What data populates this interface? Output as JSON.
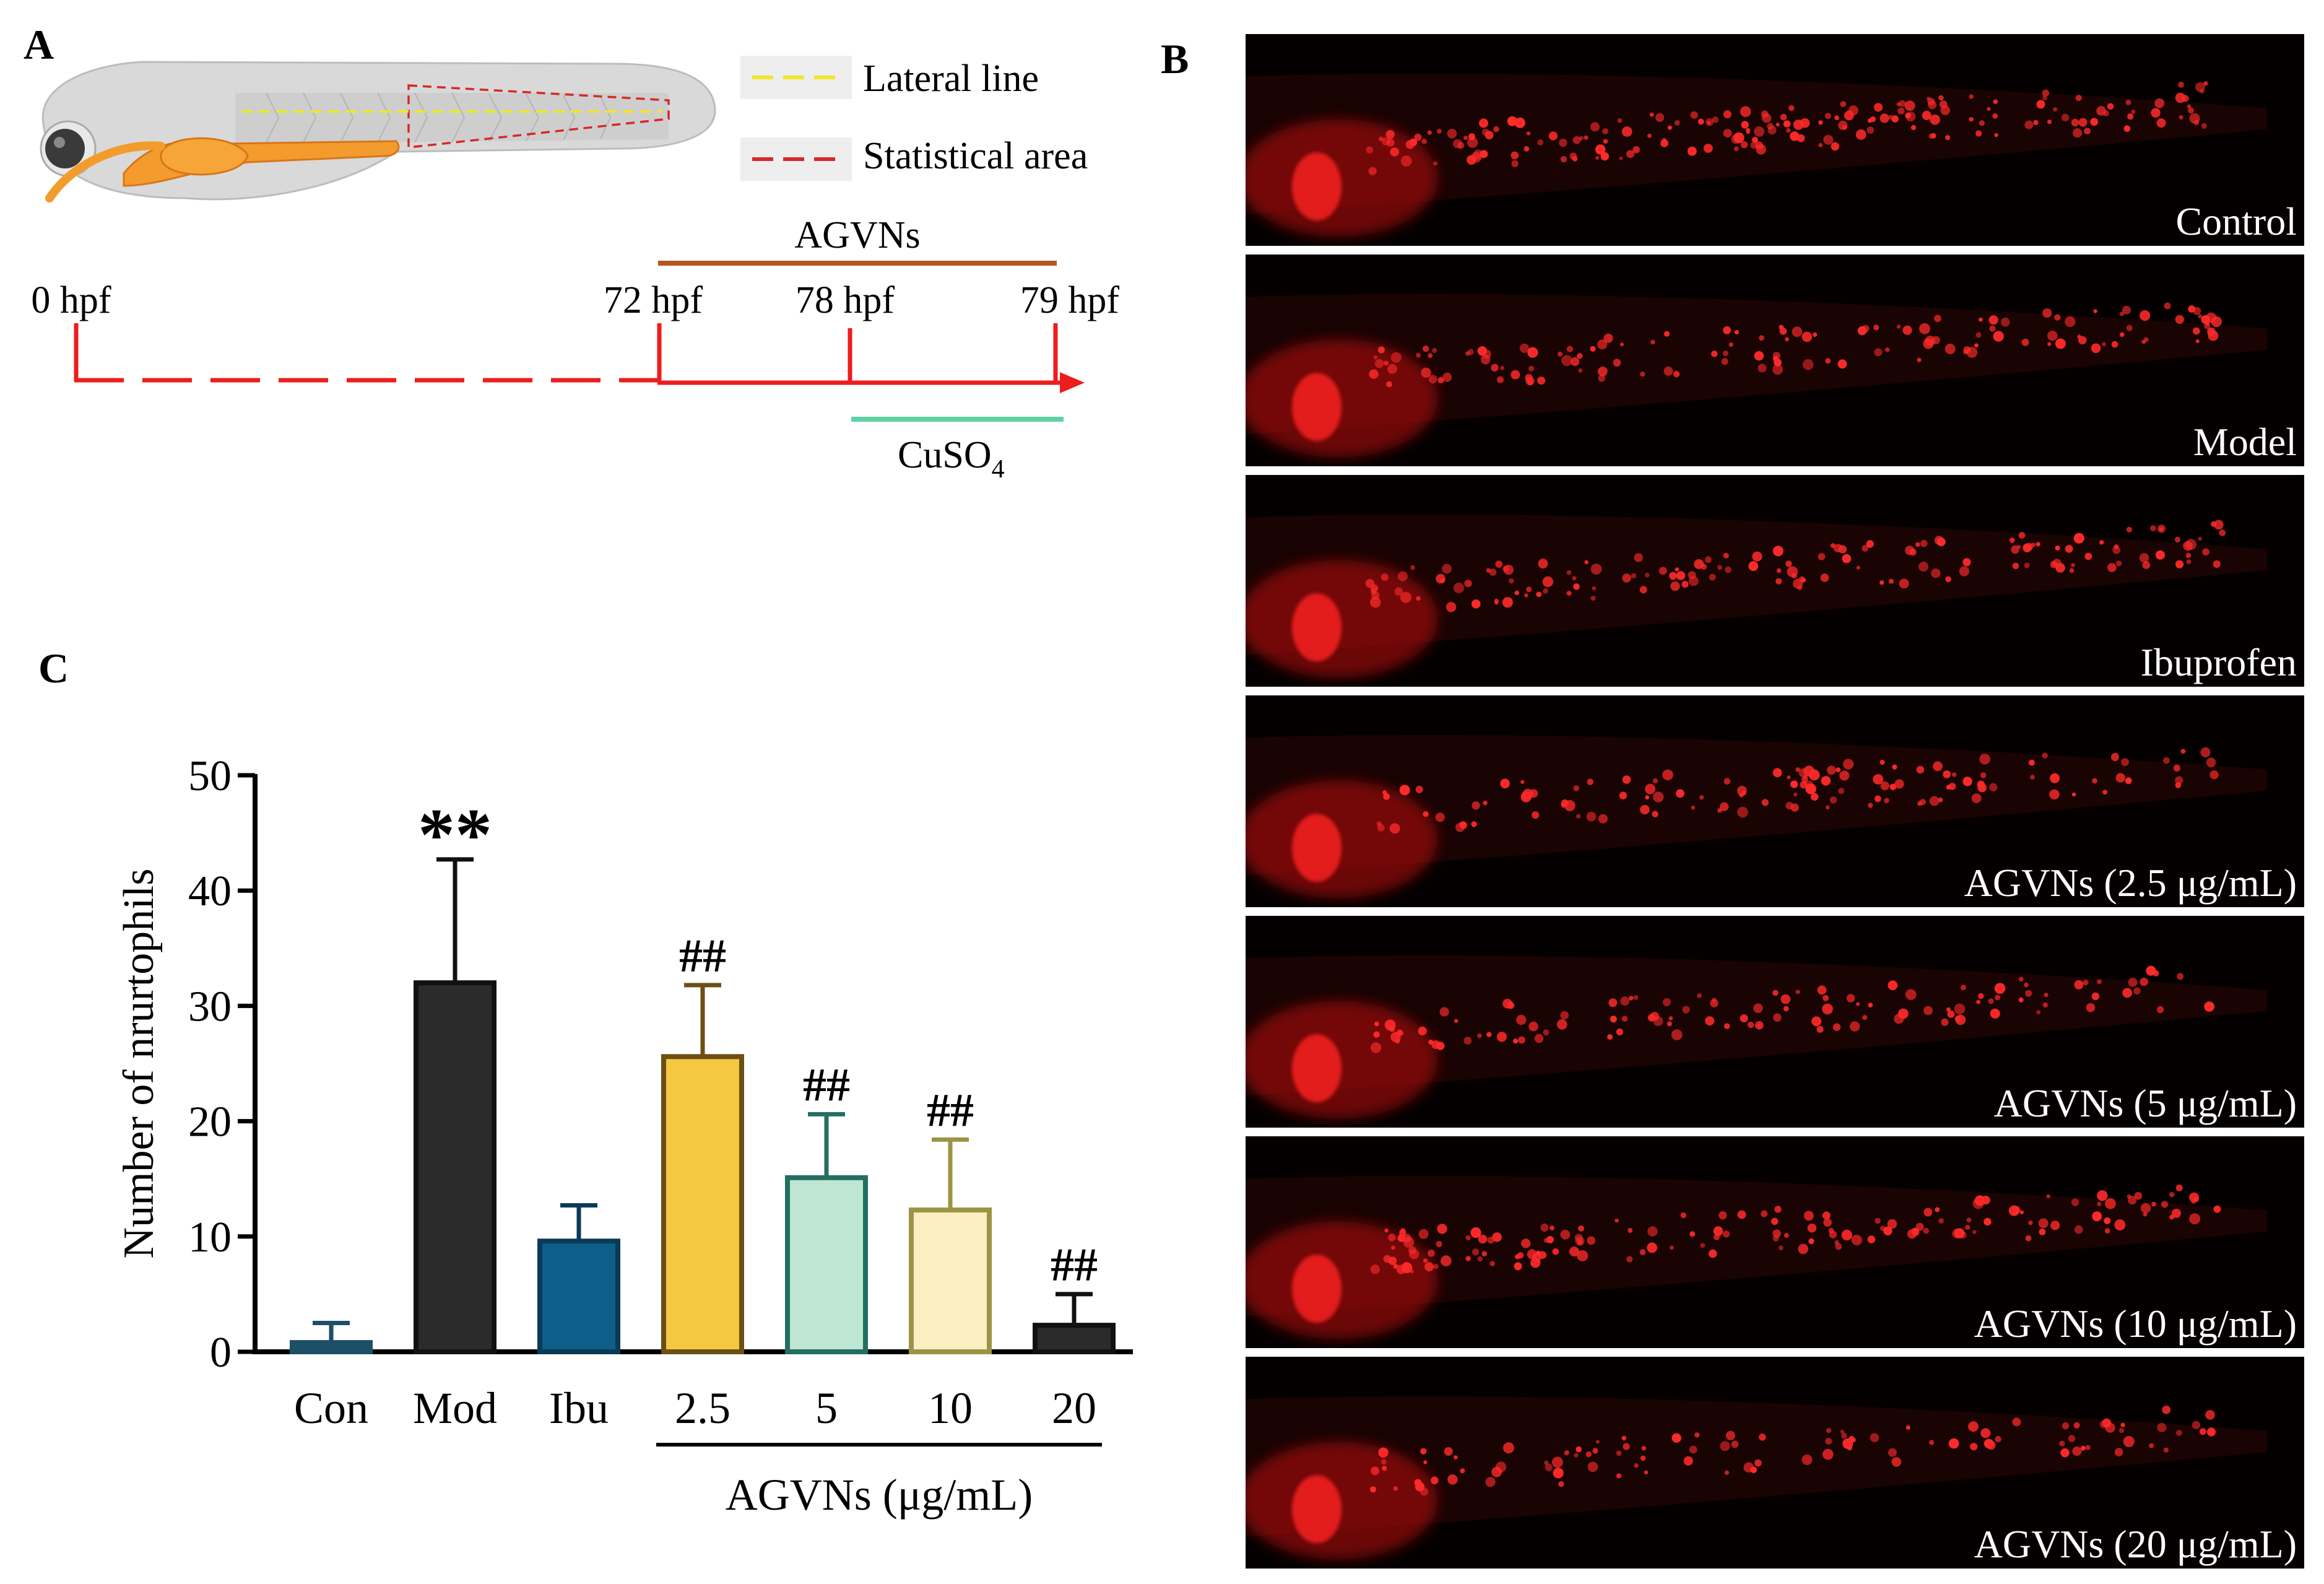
{
  "panel_a": {
    "letter": "A",
    "legend": [
      {
        "label": "Lateral line",
        "color": "#f2e52a"
      },
      {
        "label": "Statistical area",
        "color": "#d62828"
      }
    ],
    "timeline": {
      "ticks": [
        "0 hpf",
        "72 hpf",
        "78 hpf",
        "79 hpf"
      ],
      "agvns_label": "AGVNs",
      "cuso4_label": "CuSO",
      "cuso4_sub": "4",
      "colors": {
        "timeline": "#ee1c1c",
        "agvns_bar": "#b4561f",
        "cuso4_bar": "#5fd3a5"
      }
    }
  },
  "panel_b": {
    "letter": "B",
    "images": [
      {
        "label": "Control"
      },
      {
        "label": "Model"
      },
      {
        "label": "Ibuprofen"
      },
      {
        "label": "AGVNs (2.5 μg/mL)"
      },
      {
        "label": "AGVNs (5 μg/mL)"
      },
      {
        "label": "AGVNs (10 μg/mL)"
      },
      {
        "label": "AGVNs (20 μg/mL)"
      }
    ]
  },
  "panel_c": {
    "letter": "C",
    "group_label": "AGVNs (μg/mL)"
  },
  "chart_data": {
    "type": "bar",
    "categories": [
      "Con",
      "Mod",
      "Ibu",
      "2.5",
      "5",
      "10",
      "20"
    ],
    "values": [
      0.8,
      32,
      9.6,
      25.6,
      15.1,
      12.3,
      2.3
    ],
    "errors": [
      1.7,
      10.7,
      3.1,
      6.2,
      5.5,
      6.1,
      2.7
    ],
    "annotations": [
      "",
      "**",
      "",
      "##",
      "##",
      "##",
      "##"
    ],
    "colors": [
      "#1d4f66",
      "#2b2b2b",
      "#0e5e8a",
      "#f5c842",
      "#bfe6d2",
      "#fbeec0",
      "#2b2b2b"
    ],
    "edge_colors": [
      "#1d4f66",
      "#111111",
      "#0b3a57",
      "#6b4f14",
      "#246e62",
      "#9c9445",
      "#111111"
    ],
    "title": "",
    "xlabel": "",
    "ylabel": "Number of nrurtophils",
    "ylim": [
      0,
      50
    ],
    "yticks": [
      0,
      10,
      20,
      30,
      40,
      50
    ],
    "grid": false
  }
}
